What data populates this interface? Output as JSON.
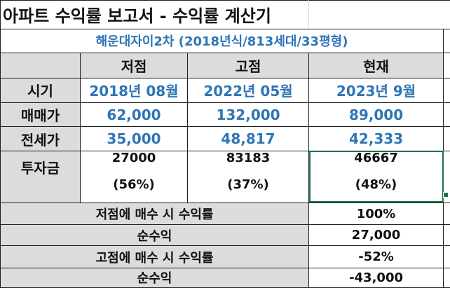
{
  "title": "아파트 수익률 보고서 - 수익률 계산기",
  "apartment": "해운대자이2차 (2018년식/813세대/33평형)",
  "columns": [
    "저점",
    "고점",
    "현재"
  ],
  "rows": {
    "period": {
      "label": "시기",
      "values": [
        "2018년 08월",
        "2022년 05월",
        "2023년 9월"
      ]
    },
    "price": {
      "label": "매매가",
      "values": [
        "62,000",
        "132,000",
        "89,000"
      ]
    },
    "jeonse": {
      "label": "전세가",
      "values": [
        "35,000",
        "48,817",
        "42,333"
      ]
    },
    "investment": {
      "label": "투자금",
      "values": [
        "27000",
        "83183",
        "46667"
      ],
      "ratios": [
        "(56%)",
        "(37%)",
        "(48%)"
      ]
    }
  },
  "summary": [
    {
      "label": "저점에 매수 시 수익률",
      "value": "100%"
    },
    {
      "label": "순수익",
      "value": "27,000"
    },
    {
      "label": "고점에 매수 시 수익률",
      "value": "-52%"
    },
    {
      "label": "순수익",
      "value": "-43,000"
    }
  ],
  "colors": {
    "label_bg": "#dcdcdc",
    "accent_blue": "#2e75b6",
    "selection": "#217346"
  }
}
